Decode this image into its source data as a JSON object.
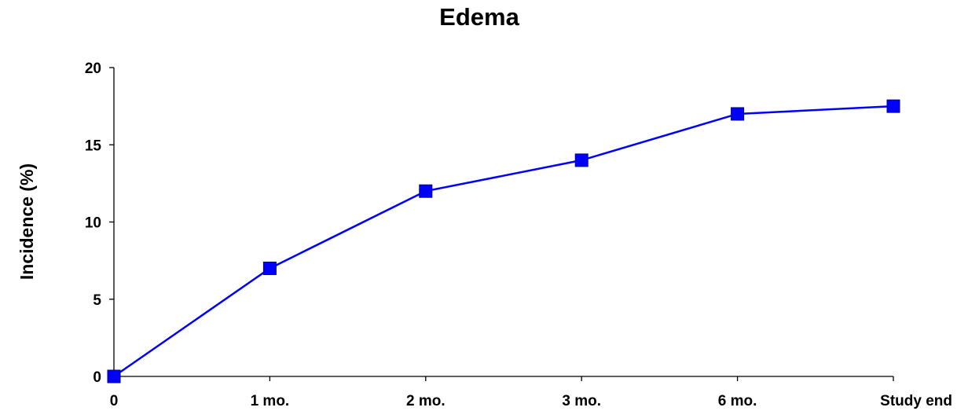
{
  "chart_data": {
    "type": "line",
    "title": "Edema",
    "xlabel": "",
    "ylabel": "Incidence (%)",
    "categories": [
      "0",
      "1 mo.",
      "2 mo.",
      "3 mo.",
      "6 mo.",
      "Study end"
    ],
    "series": [
      {
        "values": [
          0,
          7,
          12,
          14,
          17,
          17.5
        ],
        "color": "#0000ff",
        "marker": "square"
      }
    ],
    "ylim": [
      0,
      20
    ],
    "yticks": [
      "0",
      "5",
      "10",
      "15",
      "20"
    ],
    "grid": false,
    "legend": "none"
  }
}
